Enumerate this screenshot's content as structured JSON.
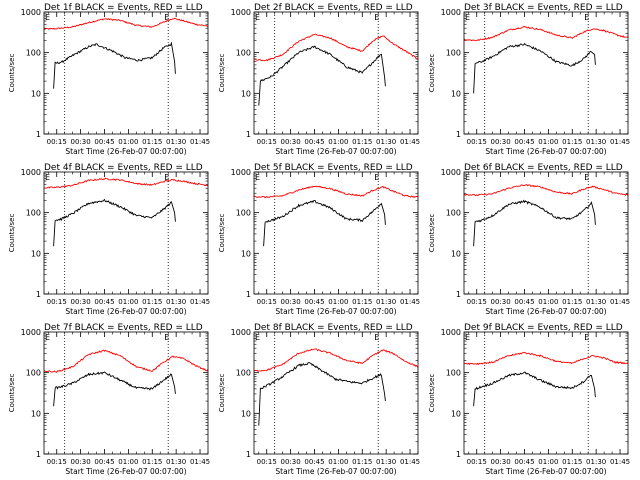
{
  "chart_data": {
    "type": "line",
    "y_scale": "log",
    "ylim": [
      1,
      1000
    ],
    "y_ticks": [
      "1",
      "10",
      "100",
      "1000"
    ],
    "ylabel": "Counts/sec",
    "xlabel": "Start Time (26-Feb-07 00:07:00)",
    "x_ticks": [
      "00:15",
      "00:30",
      "00:45",
      "01:00",
      "01:15",
      "01:30",
      "01:45"
    ],
    "x_tick_minutes": [
      15,
      30,
      45,
      60,
      75,
      90,
      105
    ],
    "xlim_minutes": [
      7,
      110
    ],
    "marker_letter": "E",
    "series_colors": {
      "events": "#000000",
      "lld": "#ff0000"
    },
    "panels": [
      {
        "title": "Det 1f BLACK = Events, RED = LLD",
        "dotted_lines_minutes": [
          20,
          85
        ],
        "lld": [
          [
            7,
            380
          ],
          [
            15,
            390
          ],
          [
            25,
            430
          ],
          [
            35,
            550
          ],
          [
            45,
            680
          ],
          [
            55,
            620
          ],
          [
            65,
            470
          ],
          [
            75,
            430
          ],
          [
            82,
            560
          ],
          [
            88,
            700
          ],
          [
            95,
            600
          ],
          [
            102,
            500
          ],
          [
            110,
            450
          ]
        ],
        "events": [
          [
            13,
            13
          ],
          [
            14,
            55
          ],
          [
            18,
            58
          ],
          [
            25,
            85
          ],
          [
            35,
            140
          ],
          [
            40,
            160
          ],
          [
            50,
            110
          ],
          [
            58,
            75
          ],
          [
            66,
            65
          ],
          [
            75,
            75
          ],
          [
            82,
            130
          ],
          [
            87,
            165
          ],
          [
            89,
            60
          ],
          [
            89.5,
            30
          ]
        ]
      },
      {
        "title": "Det 2f BLACK = Events, RED = LLD",
        "dotted_lines_minutes": [
          20,
          85
        ],
        "lld": [
          [
            7,
            68
          ],
          [
            15,
            65
          ],
          [
            25,
            90
          ],
          [
            35,
            190
          ],
          [
            45,
            280
          ],
          [
            55,
            230
          ],
          [
            65,
            140
          ],
          [
            75,
            110
          ],
          [
            82,
            200
          ],
          [
            88,
            260
          ],
          [
            95,
            160
          ],
          [
            102,
            110
          ],
          [
            110,
            70
          ]
        ],
        "events": [
          [
            10,
            5
          ],
          [
            11,
            20
          ],
          [
            18,
            26
          ],
          [
            25,
            45
          ],
          [
            35,
            100
          ],
          [
            45,
            140
          ],
          [
            55,
            90
          ],
          [
            65,
            45
          ],
          [
            75,
            32
          ],
          [
            82,
            60
          ],
          [
            87,
            95
          ],
          [
            89,
            25
          ],
          [
            89.5,
            15
          ]
        ]
      },
      {
        "title": "Det 3f BLACK = Events, RED = LLD",
        "dotted_lines_minutes": [
          20,
          85
        ],
        "lld": [
          [
            7,
            210
          ],
          [
            15,
            200
          ],
          [
            25,
            240
          ],
          [
            35,
            360
          ],
          [
            45,
            430
          ],
          [
            55,
            370
          ],
          [
            65,
            270
          ],
          [
            75,
            230
          ],
          [
            82,
            320
          ],
          [
            88,
            390
          ],
          [
            95,
            350
          ],
          [
            102,
            280
          ],
          [
            110,
            230
          ]
        ],
        "events": [
          [
            13,
            10
          ],
          [
            14,
            55
          ],
          [
            18,
            60
          ],
          [
            25,
            80
          ],
          [
            35,
            140
          ],
          [
            45,
            160
          ],
          [
            55,
            110
          ],
          [
            65,
            60
          ],
          [
            75,
            48
          ],
          [
            82,
            70
          ],
          [
            87,
            110
          ],
          [
            89,
            90
          ],
          [
            89.5,
            50
          ]
        ]
      },
      {
        "title": "Det 4f BLACK = Events, RED = LLD",
        "dotted_lines_minutes": [
          20,
          85
        ],
        "lld": [
          [
            7,
            410
          ],
          [
            15,
            420
          ],
          [
            25,
            470
          ],
          [
            35,
            620
          ],
          [
            45,
            680
          ],
          [
            55,
            640
          ],
          [
            65,
            520
          ],
          [
            75,
            480
          ],
          [
            82,
            580
          ],
          [
            88,
            640
          ],
          [
            95,
            590
          ],
          [
            102,
            520
          ],
          [
            110,
            470
          ]
        ],
        "events": [
          [
            13,
            15
          ],
          [
            14,
            65
          ],
          [
            18,
            70
          ],
          [
            25,
            95
          ],
          [
            35,
            170
          ],
          [
            45,
            200
          ],
          [
            55,
            140
          ],
          [
            65,
            85
          ],
          [
            75,
            75
          ],
          [
            82,
            120
          ],
          [
            87,
            180
          ],
          [
            89,
            100
          ],
          [
            89.5,
            60
          ]
        ]
      },
      {
        "title": "Det 5f BLACK = Events, RED = LLD",
        "dotted_lines_minutes": [
          20,
          85
        ],
        "lld": [
          [
            7,
            250
          ],
          [
            15,
            240
          ],
          [
            25,
            260
          ],
          [
            35,
            360
          ],
          [
            45,
            450
          ],
          [
            55,
            390
          ],
          [
            65,
            290
          ],
          [
            75,
            260
          ],
          [
            82,
            360
          ],
          [
            88,
            430
          ],
          [
            95,
            330
          ],
          [
            102,
            260
          ],
          [
            110,
            240
          ]
        ],
        "events": [
          [
            13,
            15
          ],
          [
            14,
            60
          ],
          [
            18,
            65
          ],
          [
            25,
            80
          ],
          [
            35,
            150
          ],
          [
            45,
            190
          ],
          [
            55,
            130
          ],
          [
            65,
            70
          ],
          [
            75,
            65
          ],
          [
            82,
            110
          ],
          [
            87,
            170
          ],
          [
            89,
            90
          ],
          [
            89.5,
            50
          ]
        ]
      },
      {
        "title": "Det 6f BLACK = Events, RED = LLD",
        "dotted_lines_minutes": [
          20,
          85
        ],
        "lld": [
          [
            7,
            280
          ],
          [
            15,
            270
          ],
          [
            25,
            290
          ],
          [
            35,
            400
          ],
          [
            45,
            480
          ],
          [
            55,
            430
          ],
          [
            65,
            320
          ],
          [
            75,
            290
          ],
          [
            82,
            380
          ],
          [
            88,
            440
          ],
          [
            95,
            370
          ],
          [
            102,
            300
          ],
          [
            110,
            270
          ]
        ],
        "events": [
          [
            13,
            15
          ],
          [
            14,
            60
          ],
          [
            18,
            65
          ],
          [
            25,
            85
          ],
          [
            35,
            160
          ],
          [
            45,
            190
          ],
          [
            55,
            135
          ],
          [
            65,
            75
          ],
          [
            75,
            70
          ],
          [
            82,
            110
          ],
          [
            87,
            170
          ],
          [
            89,
            90
          ],
          [
            89.5,
            50
          ]
        ]
      },
      {
        "title": "Det 7f BLACK = Events, RED = LLD",
        "dotted_lines_minutes": [
          20,
          85
        ],
        "lld": [
          [
            7,
            110
          ],
          [
            15,
            105
          ],
          [
            25,
            140
          ],
          [
            35,
            280
          ],
          [
            45,
            350
          ],
          [
            55,
            260
          ],
          [
            65,
            140
          ],
          [
            75,
            110
          ],
          [
            82,
            180
          ],
          [
            88,
            250
          ],
          [
            95,
            220
          ],
          [
            102,
            150
          ],
          [
            110,
            110
          ]
        ],
        "events": [
          [
            13,
            15
          ],
          [
            14,
            42
          ],
          [
            18,
            45
          ],
          [
            25,
            55
          ],
          [
            35,
            90
          ],
          [
            45,
            100
          ],
          [
            55,
            65
          ],
          [
            65,
            42
          ],
          [
            75,
            40
          ],
          [
            82,
            65
          ],
          [
            87,
            90
          ],
          [
            89,
            45
          ],
          [
            89.5,
            30
          ]
        ]
      },
      {
        "title": "Det 8f BLACK = Events, RED = LLD",
        "dotted_lines_minutes": [
          20,
          85
        ],
        "lld": [
          [
            7,
            110
          ],
          [
            15,
            115
          ],
          [
            25,
            160
          ],
          [
            35,
            300
          ],
          [
            45,
            380
          ],
          [
            55,
            300
          ],
          [
            65,
            200
          ],
          [
            75,
            170
          ],
          [
            82,
            270
          ],
          [
            88,
            360
          ],
          [
            95,
            290
          ],
          [
            102,
            190
          ],
          [
            110,
            140
          ]
        ],
        "events": [
          [
            10,
            5
          ],
          [
            11,
            40
          ],
          [
            18,
            55
          ],
          [
            25,
            80
          ],
          [
            35,
            150
          ],
          [
            42,
            170
          ],
          [
            50,
            110
          ],
          [
            58,
            70
          ],
          [
            66,
            60
          ],
          [
            75,
            55
          ],
          [
            82,
            75
          ],
          [
            87,
            90
          ],
          [
            89,
            30
          ],
          [
            89.5,
            20
          ]
        ]
      },
      {
        "title": "Det 9f BLACK = Events, RED = LLD",
        "dotted_lines_minutes": [
          20,
          85
        ],
        "lld": [
          [
            7,
            170
          ],
          [
            15,
            165
          ],
          [
            25,
            180
          ],
          [
            35,
            260
          ],
          [
            45,
            310
          ],
          [
            55,
            260
          ],
          [
            65,
            190
          ],
          [
            75,
            170
          ],
          [
            82,
            220
          ],
          [
            88,
            260
          ],
          [
            95,
            230
          ],
          [
            102,
            180
          ],
          [
            110,
            170
          ]
        ],
        "events": [
          [
            13,
            15
          ],
          [
            14,
            40
          ],
          [
            18,
            45
          ],
          [
            25,
            55
          ],
          [
            35,
            85
          ],
          [
            45,
            100
          ],
          [
            55,
            65
          ],
          [
            65,
            45
          ],
          [
            75,
            42
          ],
          [
            82,
            60
          ],
          [
            87,
            90
          ],
          [
            89,
            40
          ],
          [
            89.5,
            25
          ]
        ]
      }
    ]
  }
}
